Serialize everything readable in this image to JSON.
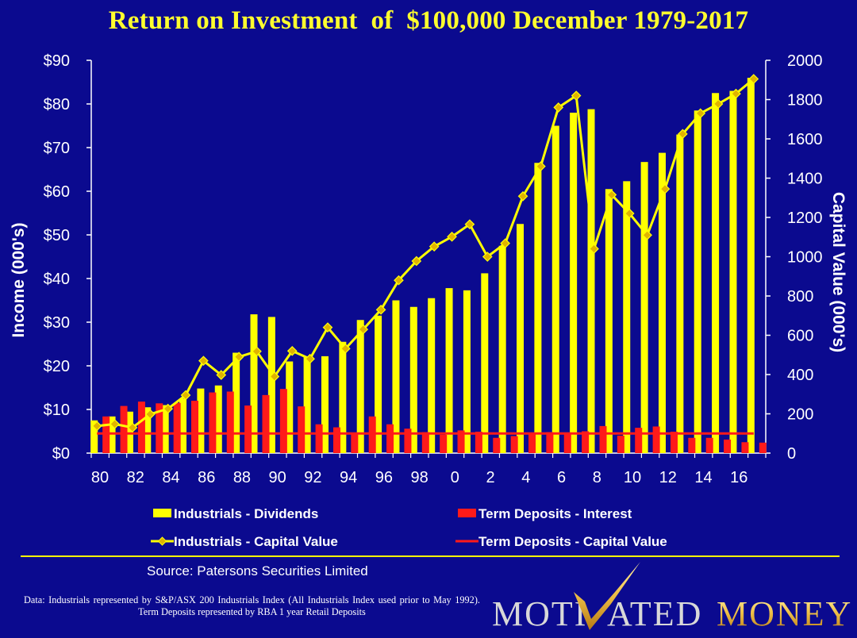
{
  "chart_data": {
    "type": "bar+line",
    "title": "Return on Investment  of  $100,000 December 1979-2017",
    "x_tick_labels": [
      "80",
      "82",
      "84",
      "86",
      "88",
      "90",
      "92",
      "94",
      "96",
      "98",
      "0",
      "2",
      "4",
      "6",
      "8",
      "10",
      "12",
      "14",
      "16"
    ],
    "years": [
      1980,
      1981,
      1982,
      1983,
      1984,
      1985,
      1986,
      1987,
      1988,
      1989,
      1990,
      1991,
      1992,
      1993,
      1994,
      1995,
      1996,
      1997,
      1998,
      1999,
      2000,
      2001,
      2002,
      2003,
      2004,
      2005,
      2006,
      2007,
      2008,
      2009,
      2010,
      2011,
      2012,
      2013,
      2014,
      2015,
      2016,
      2017
    ],
    "left_axis": {
      "label": "Income (000's)",
      "ticks": [
        "$0",
        "$10",
        "$20",
        "$30",
        "$40",
        "$50",
        "$60",
        "$70",
        "$80",
        "$90"
      ],
      "range": [
        0,
        90
      ]
    },
    "right_axis": {
      "label": "Capital Value (000's)",
      "ticks": [
        "0",
        "200",
        "400",
        "600",
        "800",
        "1000",
        "1200",
        "1400",
        "1600",
        "1800",
        "2000"
      ],
      "range": [
        0,
        2000
      ]
    },
    "series": [
      {
        "name": "Industrials - Dividends",
        "type": "bar",
        "axis": "left",
        "color": "#ffff00",
        "values": [
          7.5,
          8.4,
          9.5,
          10.5,
          11,
          12.5,
          14.8,
          15.5,
          23,
          31.8,
          31.2,
          21,
          22,
          22.2,
          25.5,
          30.5,
          31.5,
          35,
          33.5,
          35.5,
          37.8,
          37.3,
          41.2,
          47.5,
          52.5,
          66.5,
          75,
          78,
          78.8,
          60.5,
          62.3,
          66.7,
          68.8,
          73,
          78.5,
          82.5,
          83,
          86
        ]
      },
      {
        "name": "Term Deposits - Interest",
        "type": "bar",
        "axis": "left",
        "color": "#ff1a1a",
        "values": [
          8.4,
          10.8,
          11.8,
          11.4,
          11.5,
          12,
          13.9,
          14.1,
          10.9,
          13.3,
          14.7,
          10.7,
          6.6,
          5.9,
          4.6,
          8.4,
          6.6,
          5.6,
          4.8,
          4.2,
          5.2,
          4.9,
          3.5,
          3.9,
          4.6,
          4.8,
          4.4,
          5,
          6.2,
          4,
          5.8,
          6.1,
          4.9,
          3.5,
          3.5,
          3.1,
          2.5,
          2.4
        ]
      },
      {
        "name": "Industrials - Capital Value",
        "type": "line",
        "axis": "right",
        "color": "#ffff00",
        "marker": "diamond",
        "values": [
          138,
          148,
          130,
          198,
          226,
          295,
          470,
          398,
          490,
          518,
          390,
          520,
          480,
          640,
          532,
          630,
          730,
          880,
          978,
          1052,
          1102,
          1165,
          1000,
          1068,
          1308,
          1460,
          1760,
          1820,
          1040,
          1315,
          1220,
          1110,
          1345,
          1625,
          1730,
          1778,
          1830,
          1905
        ]
      },
      {
        "name": "Term Deposits - Capital Value",
        "type": "line",
        "axis": "right",
        "color": "#ff1a1a",
        "values": [
          100,
          100,
          100,
          100,
          100,
          100,
          100,
          100,
          100,
          100,
          100,
          100,
          100,
          100,
          100,
          100,
          100,
          100,
          100,
          100,
          100,
          100,
          100,
          100,
          100,
          100,
          100,
          100,
          100,
          100,
          100,
          100,
          100,
          100,
          100,
          100,
          100,
          100
        ]
      }
    ],
    "legend_position": "bottom"
  },
  "source": "Source: Patersons Securities Limited",
  "footnote": "Data: Industrials represented by S&P/ASX 200 Industrials Index (All Industrials Index used prior to May 1992).  Term Deposits represented by RBA 1 year Retail Deposits",
  "logo": {
    "text_1": "MOTI",
    "text_2": "ATED",
    "text_3": "MONEY"
  }
}
